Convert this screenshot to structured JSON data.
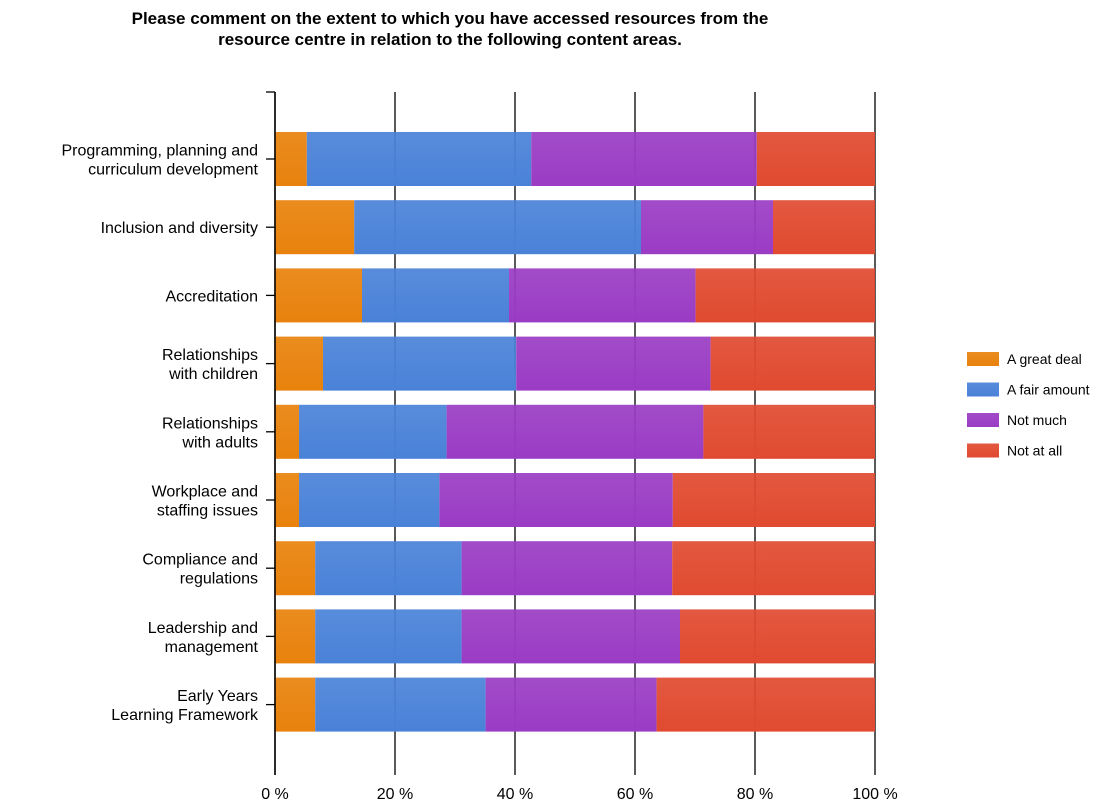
{
  "chart_data": {
    "type": "bar",
    "orientation": "horizontal",
    "stacked": "percent",
    "title": [
      "Please comment on the extent to which you have accessed resources from the",
      "resource centre in relation to the following content areas."
    ],
    "categories": [
      [
        "Programming, planning and",
        "curriculum development"
      ],
      [
        "Inclusion and diversity"
      ],
      [
        "Accreditation"
      ],
      [
        "Relationships",
        "with children"
      ],
      [
        "Relationships",
        "with adults"
      ],
      [
        "Workplace and",
        "staffing issues"
      ],
      [
        "Compliance and",
        "regulations"
      ],
      [
        "Leadership and",
        "management"
      ],
      [
        "Early Years",
        "Learning Framework"
      ]
    ],
    "series": [
      {
        "name": "A great deal",
        "color": "#e8820c",
        "values": [
          5.3,
          13.2,
          14.5,
          8.0,
          4.0,
          4.0,
          6.7,
          6.7,
          6.7
        ]
      },
      {
        "name": "A fair amount",
        "color": "#4a82d8",
        "values": [
          37.4,
          47.8,
          24.5,
          32.2,
          24.6,
          23.4,
          24.4,
          24.4,
          28.4
        ]
      },
      {
        "name": "Not much",
        "color": "#9a3cc4",
        "values": [
          37.6,
          22.0,
          31.1,
          32.4,
          42.8,
          38.9,
          35.1,
          36.4,
          28.5
        ]
      },
      {
        "name": "Not at all",
        "color": "#e04a30",
        "values": [
          19.7,
          17.0,
          29.9,
          27.4,
          28.6,
          33.7,
          33.8,
          32.5,
          36.4
        ]
      }
    ],
    "xticks": [
      "0 %",
      "20 %",
      "40 %",
      "60 %",
      "80 %",
      "100 %"
    ],
    "xlim": [
      0,
      100
    ],
    "grid": true,
    "legend_position": "right"
  }
}
